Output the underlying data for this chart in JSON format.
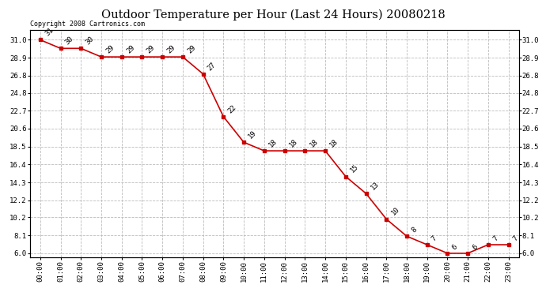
{
  "title": "Outdoor Temperature per Hour (Last 24 Hours) 20080218",
  "copyright_text": "Copyright 2008 Cartronics.com",
  "hours": [
    "00:00",
    "01:00",
    "02:00",
    "03:00",
    "04:00",
    "05:00",
    "06:00",
    "07:00",
    "08:00",
    "09:00",
    "10:00",
    "11:00",
    "12:00",
    "13:00",
    "14:00",
    "15:00",
    "16:00",
    "17:00",
    "18:00",
    "19:00",
    "20:00",
    "21:00",
    "22:00",
    "23:00"
  ],
  "values": [
    31,
    30,
    30,
    29,
    29,
    29,
    29,
    29,
    27,
    22,
    19,
    18,
    18,
    18,
    18,
    15,
    13,
    10,
    8,
    7,
    6,
    6,
    7,
    7
  ],
  "line_color": "#cc0000",
  "marker_color": "#cc0000",
  "marker": "s",
  "marker_size": 3,
  "line_width": 1.2,
  "y_left_ticks": [
    6.0,
    8.1,
    10.2,
    12.2,
    14.3,
    16.4,
    18.5,
    20.6,
    22.7,
    24.8,
    26.8,
    28.9,
    31.0
  ],
  "ylim": [
    5.5,
    32.2
  ],
  "xlim": [
    -0.5,
    23.5
  ],
  "grid_color": "#bbbbbb",
  "grid_style": "--",
  "bg_color": "#ffffff",
  "label_fontsize": 6.5,
  "title_fontsize": 10.5,
  "copyright_fontsize": 6
}
